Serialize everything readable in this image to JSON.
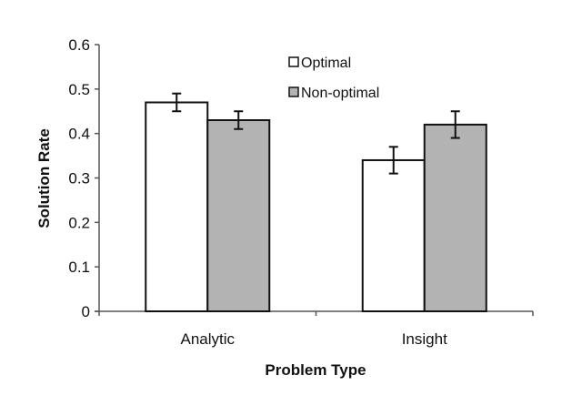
{
  "chart_data": {
    "type": "bar",
    "title": "",
    "xlabel": "Problem Type",
    "ylabel": "Solution Rate",
    "categories": [
      "Analytic",
      "Insight"
    ],
    "series": [
      {
        "name": "Optimal",
        "color": "#ffffff",
        "values": [
          0.47,
          0.34
        ],
        "errors": [
          0.02,
          0.03
        ]
      },
      {
        "name": "Non-optimal",
        "color": "#b3b3b3",
        "values": [
          0.43,
          0.42
        ],
        "errors": [
          0.02,
          0.03
        ]
      }
    ],
    "ylim": [
      0,
      0.6
    ],
    "yticks": [
      "0",
      "0.1",
      "0.2",
      "0.3",
      "0.4",
      "0.5",
      "0.6"
    ],
    "grid": false,
    "legend_position": "top-center"
  }
}
